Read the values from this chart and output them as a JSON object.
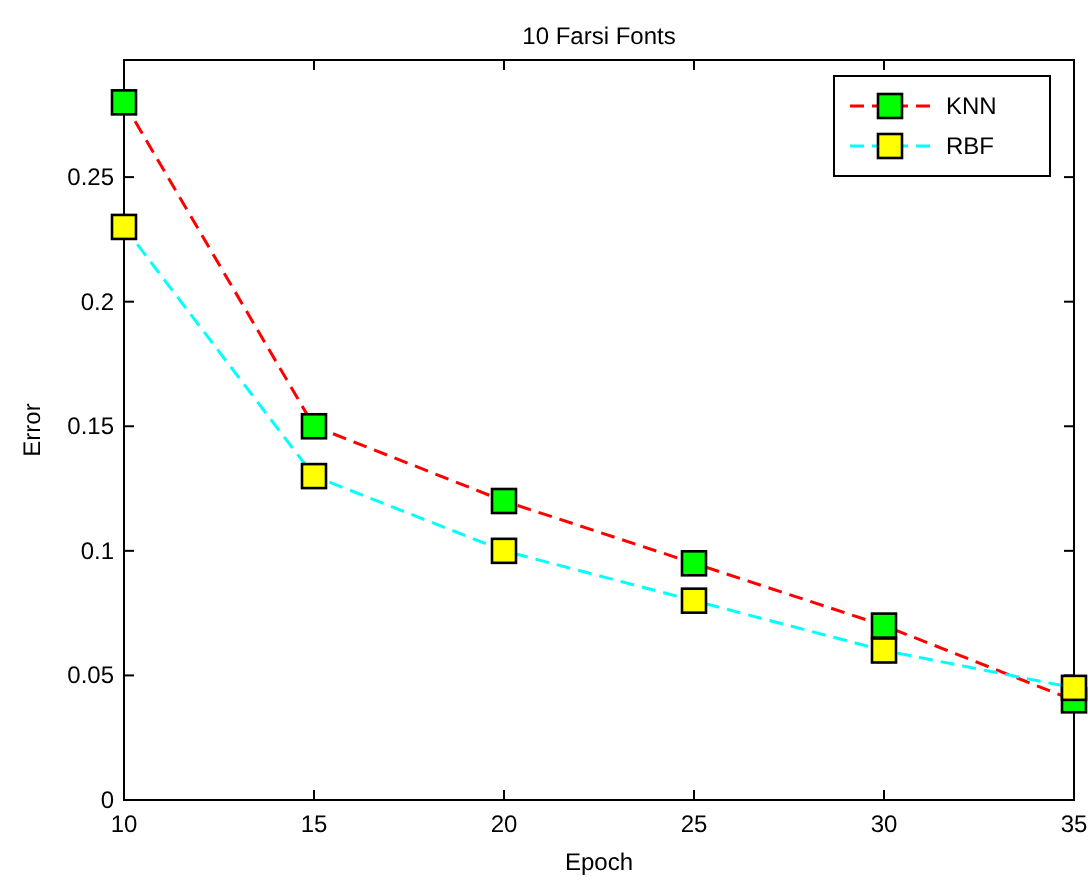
{
  "chart_data": {
    "type": "line",
    "title": "10 Farsi Fonts",
    "xlabel": "Epoch",
    "ylabel": "Error",
    "x": [
      10,
      15,
      20,
      25,
      30,
      35
    ],
    "series": [
      {
        "name": "KNN",
        "color": "#ff0000",
        "colors": [
          "#00ff00",
          "#00ff00",
          "#00ff00",
          "#00ff00",
          "#00ff00",
          "#00ff00"
        ],
        "values": [
          0.28,
          0.15,
          0.12,
          0.095,
          0.07,
          0.04
        ]
      },
      {
        "name": "RBF",
        "color": "#00ffff",
        "colors": [
          "#ffff00",
          "#ffff00",
          "#ffff00",
          "#ffff00",
          "#ffff00",
          "#ffff00"
        ],
        "values": [
          0.23,
          0.13,
          0.1,
          0.08,
          0.06,
          0.045
        ]
      }
    ],
    "xlim": [
      10,
      35
    ],
    "xticks": [
      10,
      15,
      20,
      25,
      30,
      35
    ],
    "ylim": [
      0,
      0.297
    ],
    "yticks": [
      0,
      0.05,
      0.1,
      0.15,
      0.2,
      0.25
    ],
    "grid": false,
    "legend": "top right",
    "marker": "square",
    "line_style": "dashed"
  }
}
